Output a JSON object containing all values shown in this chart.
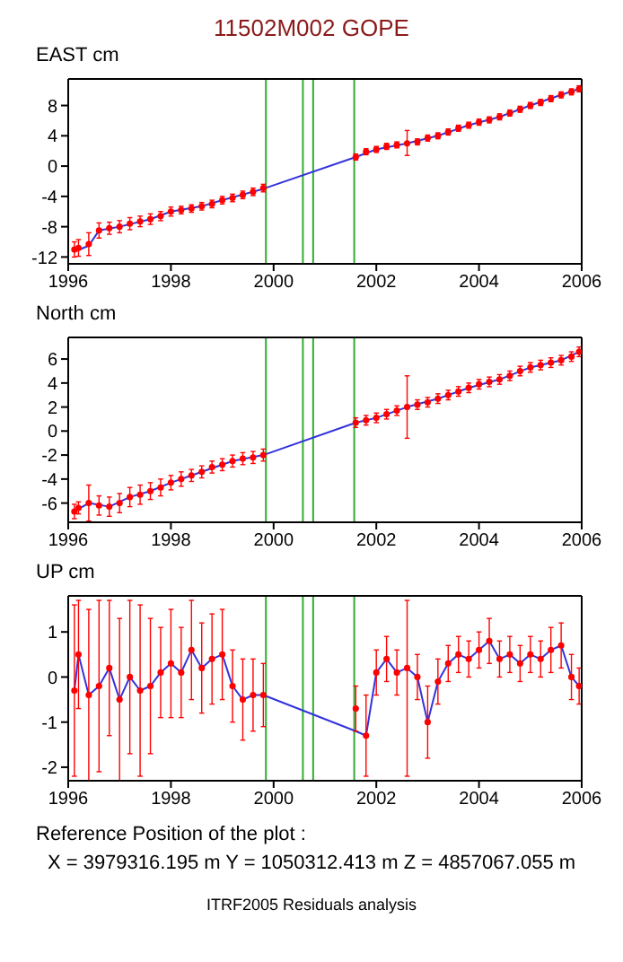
{
  "chart_data": [
    {
      "type": "scatter",
      "title": "11502M002 GOPE",
      "ylabel": "EAST cm",
      "xlim": [
        1996,
        2006
      ],
      "xticks": [
        1996,
        1998,
        2000,
        2002,
        2004,
        2006
      ],
      "ylim": [
        -12.9,
        11.5
      ],
      "yticks": [
        -12,
        -8,
        -4,
        0,
        4,
        8
      ],
      "grid": false,
      "legend": false,
      "ref_lines": [
        {
          "axis": "x",
          "value": 1999.85,
          "color": "#33aa33"
        },
        {
          "axis": "x",
          "value": 2000.57,
          "color": "#33aa33"
        },
        {
          "axis": "x",
          "value": 2000.77,
          "color": "#33aa33"
        },
        {
          "axis": "x",
          "value": 2001.57,
          "color": "#33aa33"
        }
      ],
      "series": [
        {
          "marker": "circle",
          "color": "#ff0000",
          "x": [
            1996.12,
            1996.2,
            1996.4,
            1996.6,
            1996.8,
            1997.0,
            1997.2,
            1997.4,
            1997.6,
            1997.8,
            1998.0,
            1998.2,
            1998.4,
            1998.6,
            1998.8,
            1999.0,
            1999.2,
            1999.4,
            1999.6,
            1999.8,
            2001.6,
            2001.8,
            2002.0,
            2002.2,
            2002.4,
            2002.6,
            2002.8,
            2003.0,
            2003.2,
            2003.4,
            2003.6,
            2003.8,
            2004.0,
            2004.2,
            2004.4,
            2004.6,
            2004.8,
            2005.0,
            2005.2,
            2005.4,
            2005.6,
            2005.8,
            2005.95
          ],
          "values": [
            -11,
            -10.8,
            -10.3,
            -8.5,
            -8.2,
            -8,
            -7.6,
            -7.3,
            -7,
            -6.6,
            -6,
            -5.8,
            -5.6,
            -5.3,
            -5,
            -4.5,
            -4.2,
            -3.8,
            -3.4,
            -2.9,
            1.2,
            1.9,
            2.2,
            2.6,
            2.8,
            3,
            3.2,
            3.7,
            4,
            4.5,
            5,
            5.4,
            5.8,
            6.1,
            6.5,
            7,
            7.5,
            8,
            8.4,
            8.9,
            9.4,
            9.8,
            10.2
          ],
          "errors": [
            1,
            1.1,
            1.5,
            1,
            0.8,
            0.8,
            0.8,
            0.7,
            0.7,
            0.6,
            0.6,
            0.5,
            0.5,
            0.5,
            0.5,
            0.5,
            0.5,
            0.5,
            0.5,
            0.5,
            0.4,
            0.4,
            0.4,
            0.4,
            0.4,
            [
              1.4,
              4.7
            ],
            0.4,
            0.4,
            0.4,
            0.4,
            0.4,
            0.4,
            0.4,
            0.4,
            0.4,
            0.4,
            0.4,
            0.4,
            0.4,
            0.4,
            0.4,
            0.4,
            0.4
          ]
        },
        {
          "type": "line",
          "marker": "none",
          "color": "#3333dd",
          "x": [
            1996.12,
            1996.4,
            1996.6,
            1997.0,
            1997.6,
            1998.0,
            1998.6,
            1999.0,
            1999.8,
            2001.6,
            2002.0,
            2002.6,
            2003.2,
            2003.8,
            2004.4,
            2005.0,
            2005.6,
            2005.95
          ],
          "values": [
            -11.3,
            -10.5,
            -8.5,
            -8,
            -7,
            -6,
            -5.3,
            -4.5,
            -3,
            1.2,
            2.2,
            3,
            4,
            5.4,
            6.5,
            8,
            9.4,
            10.2
          ]
        }
      ]
    },
    {
      "type": "scatter",
      "ylabel": "North cm",
      "xlim": [
        1996,
        2006
      ],
      "xticks": [
        1996,
        1998,
        2000,
        2002,
        2004,
        2006
      ],
      "ylim": [
        -7.6,
        7.8
      ],
      "yticks": [
        -6,
        -4,
        -2,
        0,
        2,
        4,
        6
      ],
      "grid": false,
      "legend": false,
      "ref_lines": [
        {
          "axis": "x",
          "value": 1999.85,
          "color": "#33aa33"
        },
        {
          "axis": "x",
          "value": 2000.57,
          "color": "#33aa33"
        },
        {
          "axis": "x",
          "value": 2000.77,
          "color": "#33aa33"
        },
        {
          "axis": "x",
          "value": 2001.57,
          "color": "#33aa33"
        }
      ],
      "series": [
        {
          "marker": "circle",
          "color": "#ff0000",
          "x": [
            1996.12,
            1996.2,
            1996.4,
            1996.6,
            1996.8,
            1997.0,
            1997.2,
            1997.4,
            1997.6,
            1997.8,
            1998.0,
            1998.2,
            1998.4,
            1998.6,
            1998.8,
            1999.0,
            1999.2,
            1999.4,
            1999.6,
            1999.8,
            2001.6,
            2001.8,
            2002.0,
            2002.2,
            2002.4,
            2002.6,
            2002.8,
            2003.0,
            2003.2,
            2003.4,
            2003.6,
            2003.8,
            2004.0,
            2004.2,
            2004.4,
            2004.6,
            2004.8,
            2005.0,
            2005.2,
            2005.4,
            2005.6,
            2005.8,
            2005.95
          ],
          "values": [
            -6.7,
            -6.4,
            -6,
            -6.2,
            -6.3,
            -6,
            -5.5,
            -5.3,
            -5,
            -4.7,
            -4.3,
            -4,
            -3.7,
            -3.4,
            -3,
            -2.8,
            -2.5,
            -2.3,
            -2.2,
            -2,
            0.7,
            0.9,
            1.1,
            1.4,
            1.7,
            2,
            2.2,
            2.4,
            2.7,
            3,
            3.3,
            3.6,
            3.9,
            4.1,
            4.3,
            4.6,
            5,
            5.3,
            5.5,
            5.7,
            5.9,
            6.2,
            6.6
          ],
          "errors": [
            0.6,
            0.5,
            1.5,
            0.8,
            0.8,
            0.8,
            0.8,
            0.8,
            0.7,
            0.7,
            0.6,
            0.6,
            0.5,
            0.5,
            0.5,
            0.5,
            0.5,
            0.5,
            0.5,
            0.5,
            0.4,
            0.4,
            0.4,
            0.4,
            0.4,
            [
              -0.6,
              4.6
            ],
            0.4,
            0.4,
            0.4,
            0.4,
            0.4,
            0.4,
            0.4,
            0.4,
            0.4,
            0.4,
            0.4,
            0.4,
            0.4,
            0.4,
            0.4,
            0.4,
            0.4
          ]
        },
        {
          "type": "line",
          "marker": "none",
          "color": "#3333dd",
          "x": [
            1996.12,
            1996.4,
            1996.8,
            1997.2,
            1997.6,
            1998.0,
            1998.6,
            1999.2,
            1999.8,
            2001.6,
            2002.0,
            2002.6,
            2003.2,
            2003.8,
            2004.4,
            2005.0,
            2005.6,
            2005.95
          ],
          "values": [
            -6.7,
            -6,
            -6.3,
            -5.5,
            -5,
            -4.3,
            -3.4,
            -2.5,
            -2,
            0.7,
            1.1,
            2,
            2.7,
            3.6,
            4.3,
            5.3,
            5.9,
            6.6
          ]
        }
      ]
    },
    {
      "type": "scatter",
      "ylabel": "UP cm",
      "xlim": [
        1996,
        2006
      ],
      "xticks": [
        1996,
        1998,
        2000,
        2002,
        2004,
        2006
      ],
      "ylim": [
        -2.3,
        1.8
      ],
      "yticks": [
        -2,
        -1,
        0,
        1
      ],
      "grid": false,
      "legend": false,
      "ref_lines": [
        {
          "axis": "x",
          "value": 1999.85,
          "color": "#33aa33"
        },
        {
          "axis": "x",
          "value": 2000.57,
          "color": "#33aa33"
        },
        {
          "axis": "x",
          "value": 2000.77,
          "color": "#33aa33"
        },
        {
          "axis": "x",
          "value": 2001.57,
          "color": "#33aa33"
        }
      ],
      "annotations": [
        "Reference Position of the plot :",
        "X = 3979316.195 m   Y = 1050312.413 m   Z = 4857067.055 m",
        "ITRF2005 Residuals analysis"
      ],
      "series": [
        {
          "marker": "circle",
          "color": "#ff0000",
          "x": [
            1996.12,
            1996.2,
            1996.4,
            1996.6,
            1996.8,
            1997.0,
            1997.2,
            1997.4,
            1997.6,
            1997.8,
            1998.0,
            1998.2,
            1998.4,
            1998.6,
            1998.8,
            1999.0,
            1999.2,
            1999.4,
            1999.6,
            1999.8,
            2001.6,
            2001.8,
            2002.0,
            2002.2,
            2002.4,
            2002.6,
            2002.8,
            2003.0,
            2003.2,
            2003.4,
            2003.6,
            2003.8,
            2004.0,
            2004.2,
            2004.4,
            2004.6,
            2004.8,
            2005.0,
            2005.2,
            2005.4,
            2005.6,
            2005.8,
            2005.95
          ],
          "values": [
            -0.3,
            0.5,
            -0.4,
            -0.2,
            0.2,
            -0.5,
            0,
            -0.3,
            -0.2,
            0.1,
            0.3,
            0.1,
            0.6,
            0.2,
            0.4,
            0.5,
            -0.2,
            -0.5,
            -0.4,
            -0.4,
            -0.7,
            -1.3,
            0.1,
            0.4,
            0.1,
            0.2,
            0,
            -1,
            -0.1,
            0.3,
            0.5,
            0.4,
            0.6,
            0.8,
            0.4,
            0.5,
            0.3,
            0.5,
            0.4,
            0.6,
            0.7,
            0,
            -0.2
          ],
          "errors": [
            1.9,
            1.2,
            1.9,
            1.9,
            1.5,
            1.8,
            1.7,
            1.9,
            1.5,
            1,
            1.2,
            1,
            1.1,
            1,
            1,
            1,
            0.8,
            0.9,
            0.8,
            0.7,
            0.5,
            0.9,
            0.5,
            0.5,
            0.5,
            [
              -2.2,
              1.7
            ],
            0.5,
            0.8,
            0.5,
            0.4,
            0.4,
            0.4,
            0.4,
            0.5,
            0.4,
            0.4,
            0.4,
            0.4,
            0.4,
            0.5,
            0.5,
            0.5,
            0.4
          ]
        },
        {
          "type": "line",
          "marker": "none",
          "color": "#3333dd",
          "x": [
            1996.12,
            1996.2,
            1996.4,
            1996.6,
            1996.8,
            1997.0,
            1997.2,
            1997.4,
            1997.6,
            1997.8,
            1998.0,
            1998.2,
            1998.4,
            1998.6,
            1998.8,
            1999.0,
            1999.2,
            1999.4,
            1999.6,
            1999.8,
            2001.6,
            2001.8,
            2002.0,
            2002.2,
            2002.4,
            2002.6,
            2002.8,
            2003.0,
            2003.2,
            2003.4,
            2003.6,
            2003.8,
            2004.0,
            2004.2,
            2004.4,
            2004.6,
            2004.8,
            2005.0,
            2005.2,
            2005.4,
            2005.6,
            2005.8,
            2005.95
          ],
          "values": [
            -0.3,
            0.5,
            -0.4,
            -0.2,
            0.2,
            -0.5,
            0,
            -0.3,
            -0.2,
            0.1,
            0.3,
            0.1,
            0.6,
            0.2,
            0.4,
            0.5,
            -0.2,
            -0.5,
            -0.4,
            -0.4,
            -1.2,
            -1.3,
            0.1,
            0.4,
            0.1,
            0.2,
            0,
            -1,
            -0.1,
            0.3,
            0.5,
            0.4,
            0.6,
            0.8,
            0.4,
            0.5,
            0.3,
            0.5,
            0.4,
            0.6,
            0.7,
            0,
            -0.2
          ]
        }
      ]
    }
  ]
}
